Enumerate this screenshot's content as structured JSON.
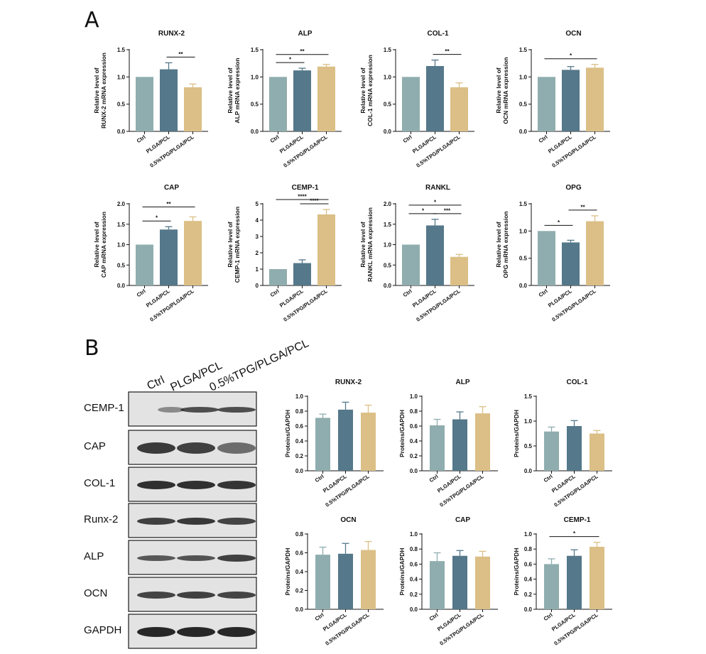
{
  "panels": {
    "a": "A",
    "b": "B"
  },
  "colors": {
    "ctrl": "#8fadae",
    "plga": "#55788a",
    "tpg": "#dbbf86"
  },
  "western_blot": {
    "lanes": [
      "Ctrl",
      "PLGA/PCL",
      "0.5%TPG/PLGA/PCL"
    ],
    "bands": [
      "CEMP-1",
      "CAP",
      "COL-1",
      "Runx-2",
      "ALP",
      "OCN",
      "GAPDH"
    ]
  },
  "chart_data": [
    {
      "type": "bar",
      "title": "RUNX-2",
      "ylabel": "Relative level of RUNX-2 mRNA expression",
      "categories": [
        "Ctrl",
        "PLGA/PCL",
        "0.5%TPG/PLGA/PCL"
      ],
      "values": [
        1.0,
        1.14,
        0.81
      ],
      "errors": [
        0,
        0.12,
        0.06
      ],
      "ylim": [
        0,
        1.5
      ],
      "yticks": [
        "0.0",
        "0.5",
        "1.0",
        "1.5"
      ],
      "significance": [
        {
          "from": 1,
          "to": 2,
          "label": "**"
        }
      ]
    },
    {
      "type": "bar",
      "title": "ALP",
      "ylabel": "Relative level of ALP mRNA expression",
      "categories": [
        "Ctrl",
        "PLGA/PCL",
        "0.5%TPG/PLGA/PCL"
      ],
      "values": [
        1.0,
        1.12,
        1.19
      ],
      "errors": [
        0,
        0.04,
        0.04
      ],
      "ylim": [
        0,
        1.5
      ],
      "yticks": [
        "0.0",
        "0.5",
        "1.0",
        "1.5"
      ],
      "significance": [
        {
          "from": 0,
          "to": 1,
          "label": "*"
        },
        {
          "from": 0,
          "to": 2,
          "label": "**"
        }
      ]
    },
    {
      "type": "bar",
      "title": "COL-1",
      "ylabel": "Relative level of COL-1 mRNA expression",
      "categories": [
        "Ctrl",
        "PLGA/PCL",
        "0.5%TPG/PLGA/PCL"
      ],
      "values": [
        1.0,
        1.2,
        0.81
      ],
      "errors": [
        0,
        0.11,
        0.08
      ],
      "ylim": [
        0,
        1.5
      ],
      "yticks": [
        "0.0",
        "0.5",
        "1.0",
        "1.5"
      ],
      "significance": [
        {
          "from": 1,
          "to": 2,
          "label": "**"
        }
      ]
    },
    {
      "type": "bar",
      "title": "OCN",
      "ylabel": "Relative level of OCN mRNA expression",
      "categories": [
        "Ctrl",
        "PLGA/PCL",
        "0.5%TPG/PLGA/PCL"
      ],
      "values": [
        1.0,
        1.13,
        1.17
      ],
      "errors": [
        0,
        0.06,
        0.06
      ],
      "ylim": [
        0,
        1.5
      ],
      "yticks": [
        "0.0",
        "0.5",
        "1.0",
        "1.5"
      ],
      "significance": [
        {
          "from": 0,
          "to": 2,
          "label": "*"
        }
      ]
    },
    {
      "type": "bar",
      "title": "CAP",
      "ylabel": "Relative level of CAP mRNA expression",
      "categories": [
        "Ctrl",
        "PLGA/PCL",
        "0.5%TPG/PLGA/PCL"
      ],
      "values": [
        1.0,
        1.37,
        1.58
      ],
      "errors": [
        0,
        0.07,
        0.1
      ],
      "ylim": [
        0,
        2.0
      ],
      "yticks": [
        "0.0",
        "0.5",
        "1.0",
        "1.5",
        "2.0"
      ],
      "significance": [
        {
          "from": 0,
          "to": 1,
          "label": "*"
        },
        {
          "from": 0,
          "to": 2,
          "label": "**"
        }
      ]
    },
    {
      "type": "bar",
      "title": "CEMP-1",
      "ylabel": "Relative level of CEMP-1 mRNA expression",
      "categories": [
        "Ctrl",
        "PLGA/PCL",
        "0.5%TPG/PLGA/PCL"
      ],
      "values": [
        1.0,
        1.37,
        4.35
      ],
      "errors": [
        0,
        0.2,
        0.3
      ],
      "ylim": [
        0,
        5
      ],
      "yticks": [
        "0",
        "1",
        "2",
        "3",
        "4",
        "5"
      ],
      "significance": [
        {
          "from": 1,
          "to": 2,
          "label": "****"
        },
        {
          "from": 0,
          "to": 2,
          "label": "****"
        }
      ]
    },
    {
      "type": "bar",
      "title": "RANKL",
      "ylabel": "Relative level of RANKL mRNA expression",
      "categories": [
        "Ctrl",
        "PLGA/PCL",
        "0.5%TPG/PLGA/PCL"
      ],
      "values": [
        1.0,
        1.47,
        0.7
      ],
      "errors": [
        0,
        0.15,
        0.06
      ],
      "ylim": [
        0,
        2.0
      ],
      "yticks": [
        "0.0",
        "0.5",
        "1.0",
        "1.5",
        "2.0"
      ],
      "significance": [
        {
          "from": 0,
          "to": 1,
          "label": "*"
        },
        {
          "from": 1,
          "to": 2,
          "label": "***"
        },
        {
          "from": 0,
          "to": 2,
          "label": "*"
        }
      ]
    },
    {
      "type": "bar",
      "title": "OPG",
      "ylabel": "Relative level of OPG mRNA expression",
      "categories": [
        "Ctrl",
        "PLGA/PCL",
        "0.5%TPG/PLGA/PCL"
      ],
      "values": [
        1.0,
        0.79,
        1.18
      ],
      "errors": [
        0,
        0.04,
        0.1
      ],
      "ylim": [
        0,
        1.5
      ],
      "yticks": [
        "0.0",
        "0.5",
        "1.0",
        "1.5"
      ],
      "significance": [
        {
          "from": 0,
          "to": 1,
          "label": "*"
        },
        {
          "from": 1,
          "to": 2,
          "label": "**"
        }
      ]
    },
    {
      "type": "bar",
      "title": "RUNX-2",
      "ylabel": "Proteins/GAPDH",
      "categories": [
        "Ctrl",
        "PLGA/PCL",
        "0.5%TPG/PLGA/PCL"
      ],
      "values": [
        0.71,
        0.82,
        0.78
      ],
      "errors": [
        0.05,
        0.1,
        0.1
      ],
      "ylim": [
        0,
        1.0
      ],
      "yticks": [
        "0.0",
        "0.2",
        "0.4",
        "0.6",
        "0.8",
        "1.0"
      ],
      "significance": []
    },
    {
      "type": "bar",
      "title": "ALP",
      "ylabel": "Proteins/GAPDH",
      "categories": [
        "Ctrl",
        "PLGA/PCL",
        "0.5%TPG/PLGA/PCL"
      ],
      "values": [
        0.61,
        0.69,
        0.77
      ],
      "errors": [
        0.08,
        0.1,
        0.09
      ],
      "ylim": [
        0,
        1.0
      ],
      "yticks": [
        "0.0",
        "0.2",
        "0.4",
        "0.6",
        "0.8",
        "1.0"
      ],
      "significance": []
    },
    {
      "type": "bar",
      "title": "COL-1",
      "ylabel": "Proteins/GAPDH",
      "categories": [
        "Ctrl",
        "PLGA/PCL",
        "0.5%TPG/PLGA/PCL"
      ],
      "values": [
        0.79,
        0.9,
        0.75
      ],
      "errors": [
        0.09,
        0.11,
        0.06
      ],
      "ylim": [
        0,
        1.5
      ],
      "yticks": [
        "0.0",
        "0.5",
        "1.0",
        "1.5"
      ],
      "significance": []
    },
    {
      "type": "bar",
      "title": "OCN",
      "ylabel": "Proteins/GAPDH",
      "categories": [
        "Ctrl",
        "PLGA/PCL",
        "0.5%TPG/PLGA/PCL"
      ],
      "values": [
        0.58,
        0.59,
        0.63
      ],
      "errors": [
        0.08,
        0.11,
        0.09
      ],
      "ylim": [
        0,
        0.8
      ],
      "yticks": [
        "0.0",
        "0.2",
        "0.4",
        "0.6",
        "0.8"
      ],
      "significance": []
    },
    {
      "type": "bar",
      "title": "CAP",
      "ylabel": "Proteins/GAPDH",
      "categories": [
        "Ctrl",
        "PLGA/PCL",
        "0.5%TPG/PLGA/PCL"
      ],
      "values": [
        0.64,
        0.71,
        0.7
      ],
      "errors": [
        0.11,
        0.07,
        0.07
      ],
      "ylim": [
        0,
        1.0
      ],
      "yticks": [
        "0.0",
        "0.2",
        "0.4",
        "0.6",
        "0.8",
        "1.0"
      ],
      "significance": []
    },
    {
      "type": "bar",
      "title": "CEMP-1",
      "ylabel": "Proteins/GAPDH",
      "categories": [
        "Ctrl",
        "PLGA/PCL",
        "0.5%TPG/PLGA/PCL"
      ],
      "values": [
        0.6,
        0.71,
        0.83
      ],
      "errors": [
        0.07,
        0.08,
        0.06
      ],
      "ylim": [
        0,
        1.0
      ],
      "yticks": [
        "0.0",
        "0.2",
        "0.4",
        "0.6",
        "0.8",
        "1.0"
      ],
      "significance": [
        {
          "from": 0,
          "to": 2,
          "label": "*"
        }
      ]
    }
  ]
}
